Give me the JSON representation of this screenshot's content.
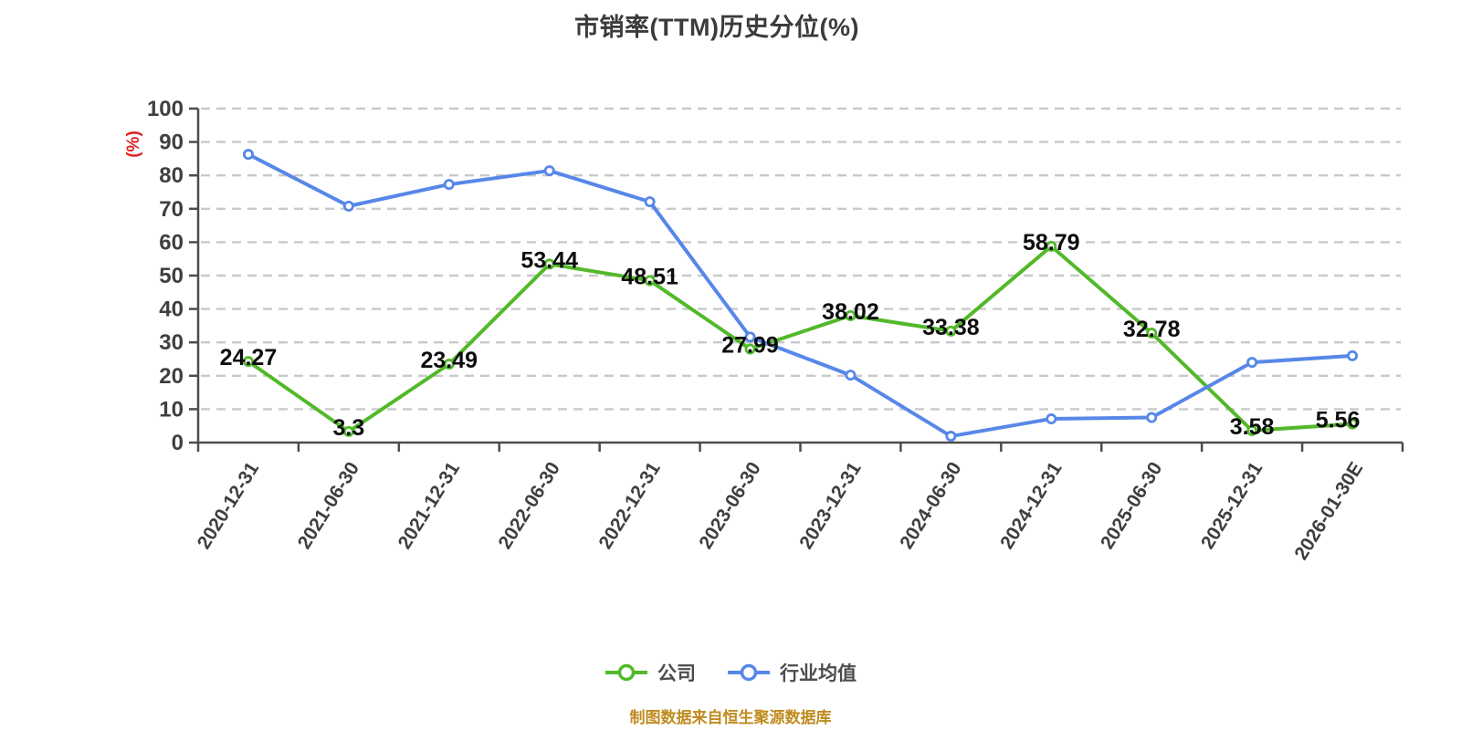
{
  "title": "市销率(TTM)历史分位(%)",
  "y_axis_unit_label": "(%)",
  "footer_note": "制图数据来自恒生聚源数据库",
  "legend": {
    "company_label": "公司",
    "industry_label": "行业均值"
  },
  "colors": {
    "company_series": "#52b92a",
    "industry_series": "#5787e8",
    "title_text": "#3b3b3b",
    "axis_line": "#4c4c4c",
    "tick_label": "#3f3f3f",
    "gridline": "#c9c9c9",
    "unit_label": "#e02121",
    "data_label": "#0d0d0d",
    "legend_text": "#4c4c4c",
    "footer_text": "#bf8b1e",
    "marker_fill": "#ffffff",
    "background": "#ffffff"
  },
  "chart_data": {
    "type": "line",
    "title": "市销率(TTM)历史分位(%)",
    "xlabel": "",
    "ylabel": "(%)",
    "ylim": [
      0,
      100
    ],
    "y_ticks": [
      0,
      10,
      20,
      30,
      40,
      50,
      60,
      70,
      80,
      90,
      100
    ],
    "grid": "horizontal dashed gridlines on",
    "legend_position": "bottom-center",
    "categories": [
      "2020-12-31",
      "2021-06-30",
      "2021-12-31",
      "2022-06-30",
      "2022-12-31",
      "2023-06-30",
      "2023-12-31",
      "2024-06-30",
      "2024-12-31",
      "2025-06-30",
      "2025-12-31",
      "2026-01-30E"
    ],
    "series": [
      {
        "name": "公司",
        "values": [
          24.27,
          3.3,
          23.49,
          53.44,
          48.51,
          27.99,
          38.02,
          33.38,
          58.79,
          32.78,
          3.58,
          5.56
        ],
        "point_labels_shown": true
      },
      {
        "name": "行业均值",
        "values": [
          86.3,
          70.8,
          77.3,
          81.4,
          72.1,
          31.6,
          20.2,
          1.9,
          7.1,
          7.5,
          24,
          26
        ],
        "point_labels_shown": false,
        "values_estimated_from_pixels": true
      }
    ],
    "label_x_offsets": {
      "11": -16
    }
  }
}
